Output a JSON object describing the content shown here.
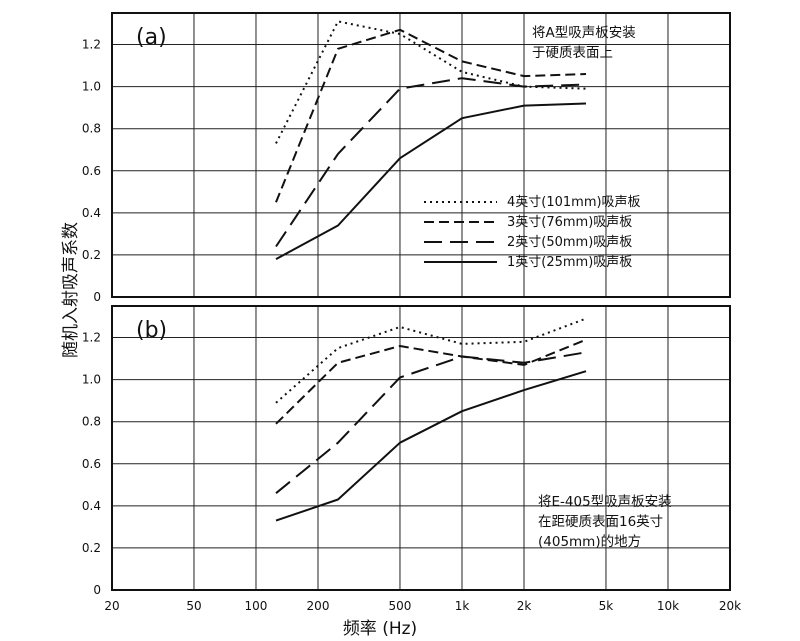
{
  "axis": {
    "xlabel": "频率 (Hz)",
    "ylabel": "随机入射吸声系数",
    "xticks": [
      {
        "value": 20,
        "label": "20"
      },
      {
        "value": 50,
        "label": "50"
      },
      {
        "value": 100,
        "label": "100"
      },
      {
        "value": 200,
        "label": "200"
      },
      {
        "value": 500,
        "label": "500"
      },
      {
        "value": 1000,
        "label": "1k"
      },
      {
        "value": 2000,
        "label": "2k"
      },
      {
        "value": 5000,
        "label": "5k"
      },
      {
        "value": 10000,
        "label": "10k"
      },
      {
        "value": 20000,
        "label": "20k"
      }
    ],
    "yticks": [
      "0",
      "0.2",
      "0.4",
      "0.6",
      "0.8",
      "1.0",
      "1.2"
    ]
  },
  "chart_data": [
    {
      "type": "line",
      "panel_label": "(a)",
      "note": [
        "将A型吸声板安装",
        "于硬质表面上"
      ],
      "xscale": "log",
      "xlim": [
        20,
        20000
      ],
      "ylim": [
        0,
        1.35
      ],
      "x": [
        125,
        250,
        500,
        1000,
        2000,
        4000
      ],
      "grid": true,
      "legend_position": "center-right",
      "series": [
        {
          "name": "4英寸(101mm)吸声板",
          "style": "dotted",
          "values": [
            0.73,
            1.31,
            1.25,
            1.07,
            1.0,
            0.99
          ]
        },
        {
          "name": "3英寸(76mm)吸声板",
          "style": "dashed",
          "values": [
            0.45,
            1.18,
            1.27,
            1.12,
            1.05,
            1.06
          ]
        },
        {
          "name": "2英寸(50mm)吸声板",
          "style": "long-dashed",
          "values": [
            0.24,
            0.68,
            0.99,
            1.04,
            1.0,
            1.01
          ]
        },
        {
          "name": "1英寸(25mm)吸声板",
          "style": "solid",
          "values": [
            0.18,
            0.34,
            0.66,
            0.85,
            0.91,
            0.92
          ]
        }
      ]
    },
    {
      "type": "line",
      "panel_label": "(b)",
      "note": [
        "将E-405型吸声板安装",
        "在距硬质表面16英寸",
        "(405mm)的地方"
      ],
      "xscale": "log",
      "xlim": [
        20,
        20000
      ],
      "ylim": [
        0,
        1.35
      ],
      "x": [
        125,
        250,
        500,
        1000,
        2000,
        4000
      ],
      "grid": true,
      "series": [
        {
          "style": "dotted",
          "values": [
            0.89,
            1.15,
            1.25,
            1.17,
            1.18,
            1.29
          ]
        },
        {
          "style": "dashed",
          "values": [
            0.79,
            1.08,
            1.16,
            1.11,
            1.07,
            1.19
          ]
        },
        {
          "style": "long-dashed",
          "values": [
            0.46,
            0.7,
            1.01,
            1.11,
            1.08,
            1.13
          ]
        },
        {
          "style": "solid",
          "values": [
            0.33,
            0.43,
            0.7,
            0.85,
            0.95,
            1.04
          ]
        }
      ]
    }
  ]
}
